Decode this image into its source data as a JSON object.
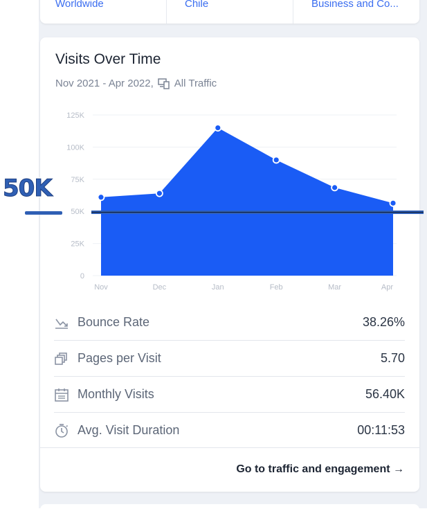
{
  "top_row": {
    "cells": [
      "Worldwide",
      "Chile",
      "Business and Co..."
    ]
  },
  "visits_card": {
    "title": "Visits Over Time",
    "subtitle_range": "Nov 2021 - Apr 2022,",
    "subtitle_device": "All Traffic",
    "footer_link": "Go to traffic and engagement →"
  },
  "chart_data": {
    "type": "area",
    "categories": [
      "Nov",
      "Dec",
      "Jan",
      "Feb",
      "Mar",
      "Apr"
    ],
    "values": [
      61000,
      64000,
      115000,
      90000,
      68500,
      56400
    ],
    "y_ticks": [
      "0",
      "25K",
      "50K",
      "75K",
      "100K",
      "125K"
    ],
    "ylim": [
      0,
      125000
    ],
    "color": "#1a5cf5",
    "grid": true
  },
  "metrics": [
    {
      "icon": "bounce-rate-icon",
      "label": "Bounce Rate",
      "value": "38.26%"
    },
    {
      "icon": "pages-per-visit-icon",
      "label": "Pages per Visit",
      "value": "5.70"
    },
    {
      "icon": "calendar-icon",
      "label": "Monthly Visits",
      "value": "56.40K"
    },
    {
      "icon": "timer-icon",
      "label": "Avg. Visit Duration",
      "value": "00:11:53"
    }
  ],
  "annotation": {
    "label": "50K",
    "value": 50000,
    "color": "#2f5fb4"
  }
}
